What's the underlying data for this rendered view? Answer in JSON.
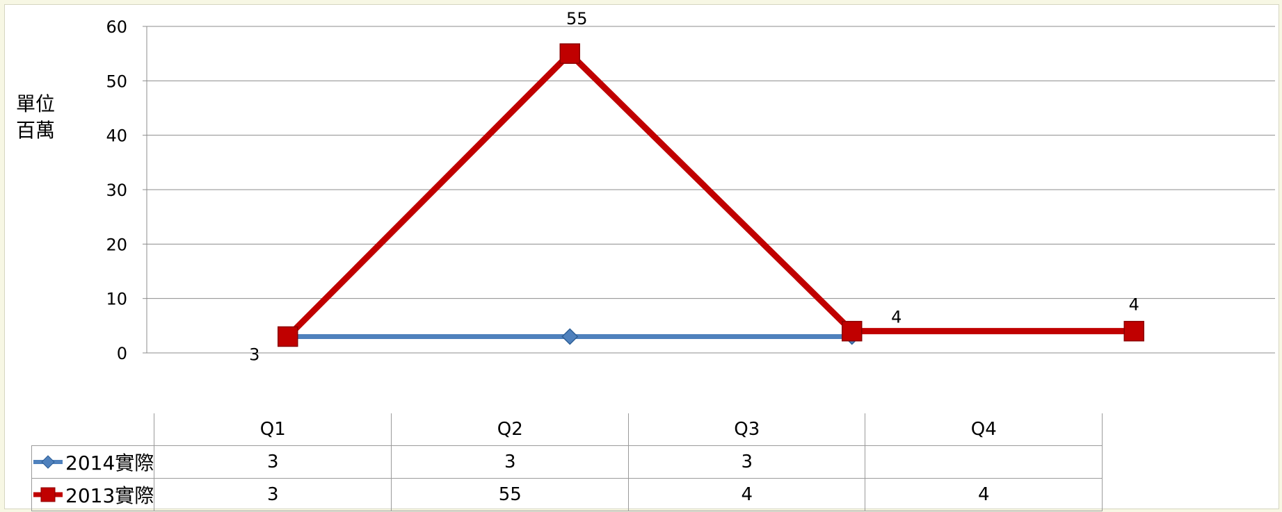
{
  "unit_label": [
    "單位",
    "百萬"
  ],
  "chart_data": {
    "type": "line",
    "categories": [
      "Q1",
      "Q2",
      "Q3",
      "Q4"
    ],
    "series": [
      {
        "name": "2014實際",
        "values": [
          3,
          3,
          3,
          null
        ],
        "color": "#4f81bd",
        "marker": "diamond",
        "data_labels": []
      },
      {
        "name": "2013實際",
        "values": [
          3,
          55,
          4,
          4
        ],
        "color": "#c00000",
        "marker": "square",
        "data_labels": [
          "3",
          "55",
          "4",
          "4"
        ]
      }
    ],
    "ylim": [
      0,
      60
    ],
    "yticks": [
      0,
      10,
      20,
      30,
      40,
      50,
      60
    ],
    "grid": true,
    "legend": "data-table",
    "table_rows": [
      {
        "series": "2014實際",
        "cells": [
          "3",
          "3",
          "3",
          ""
        ]
      },
      {
        "series": "2013實際",
        "cells": [
          "3",
          "55",
          "4",
          "4"
        ]
      }
    ]
  }
}
